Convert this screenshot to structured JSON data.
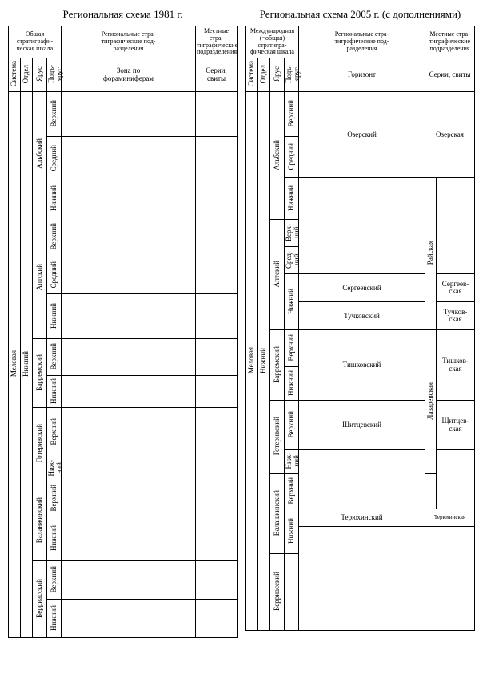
{
  "left": {
    "title": "Региональная схема 1981 г.",
    "header_groups": {
      "scale": "Общая стратиграфи-\nческая шкала",
      "regional": "Региональные стра-\nтиграфические под-\nразделения",
      "local": "Местные стра-\nтиграфические\nподразделения"
    },
    "col_headers": {
      "system": "Система",
      "otdel": "Отдел",
      "yarus": "Ярус",
      "podyarus": "Подъ-\nярус",
      "zone": "Зона по\nфораминиферам",
      "series": "Серии,\nсвиты"
    },
    "system": "Меловая",
    "otdel": "Нижний",
    "stages": [
      {
        "name": "Альбский",
        "subs": [
          "Верхний",
          "Средний",
          "Нижний"
        ]
      },
      {
        "name": "Аптский",
        "subs": [
          "Верхний",
          "Средний",
          "Нижний"
        ]
      },
      {
        "name": "Барремский",
        "subs": [
          "Верхний",
          "Нижний"
        ]
      },
      {
        "name": "Готеривский",
        "subs": [
          "Верхний",
          "Ниж-\nний"
        ]
      },
      {
        "name": "Валанжинский",
        "subs": [
          "Верхний",
          "Нижний"
        ]
      },
      {
        "name": "Берриасский",
        "subs": [
          "Верхний",
          "Нижний"
        ]
      }
    ]
  },
  "right": {
    "title": "Региональная схема 2005  г. (с дополнениями)",
    "header_groups": {
      "scale": "Международная\n(=общая) стратигра-\nфическая шкала",
      "regional": "Региональные стра-\nтиграфические под-\nразделения",
      "local": "Местные стра-\nтиграфические\nподразделения"
    },
    "col_headers": {
      "system": "Система",
      "otdel": "Отдел",
      "yarus": "Ярус",
      "podyarus": "Подъ-\nярус",
      "horizon": "Горизонт",
      "series": "Серии, свиты"
    },
    "system": "Меловая",
    "otdel": "Нижний",
    "horizons": {
      "ozerskiy": "Озерский",
      "sergeevskiy": "Сергеевский",
      "tuchkovskiy": "Тучковский",
      "tishkovskiy": "Тишковский",
      "schitzevskiy": "Щитцевский",
      "teryukhinskiy": "Терюхинский"
    },
    "svity": {
      "ozerskaya": "Озерская",
      "rayskaya": "Райская",
      "sergeevskaya": "Сергеев-\nская",
      "tuchkovskaya": "Тучков-\nская",
      "lazarevskaya": "Лазаревская",
      "tishkovskaya": "Тишков-\nская",
      "schitzevskaya": "Щитцев-\nская",
      "teryukhinskaya": "Терюхинская"
    },
    "stages": [
      {
        "name": "Альбский",
        "subs": [
          "Верхний",
          "Средний",
          "Нижний"
        ]
      },
      {
        "name": "Аптский",
        "subs": [
          "Верх-\nний",
          "Сред-\nний",
          "Нижний"
        ],
        "nizh_split": 2
      },
      {
        "name": "Барремский",
        "subs": [
          "Верхний",
          "Нижний"
        ]
      },
      {
        "name": "Готеривский",
        "subs": [
          "Верхний",
          "Ниж-\nний"
        ]
      },
      {
        "name": "Валанжинский",
        "subs": [
          "Верхний",
          "Нижний"
        ],
        "nizh_split": 2
      },
      {
        "name": "Берриасский",
        "subs": [
          ""
        ]
      }
    ]
  },
  "styling": {
    "font_family": "Times New Roman",
    "border_color": "#000000",
    "background": "#ffffff",
    "title_fontsize": 13,
    "header_fontsize": 8,
    "cell_fontsize": 9
  }
}
